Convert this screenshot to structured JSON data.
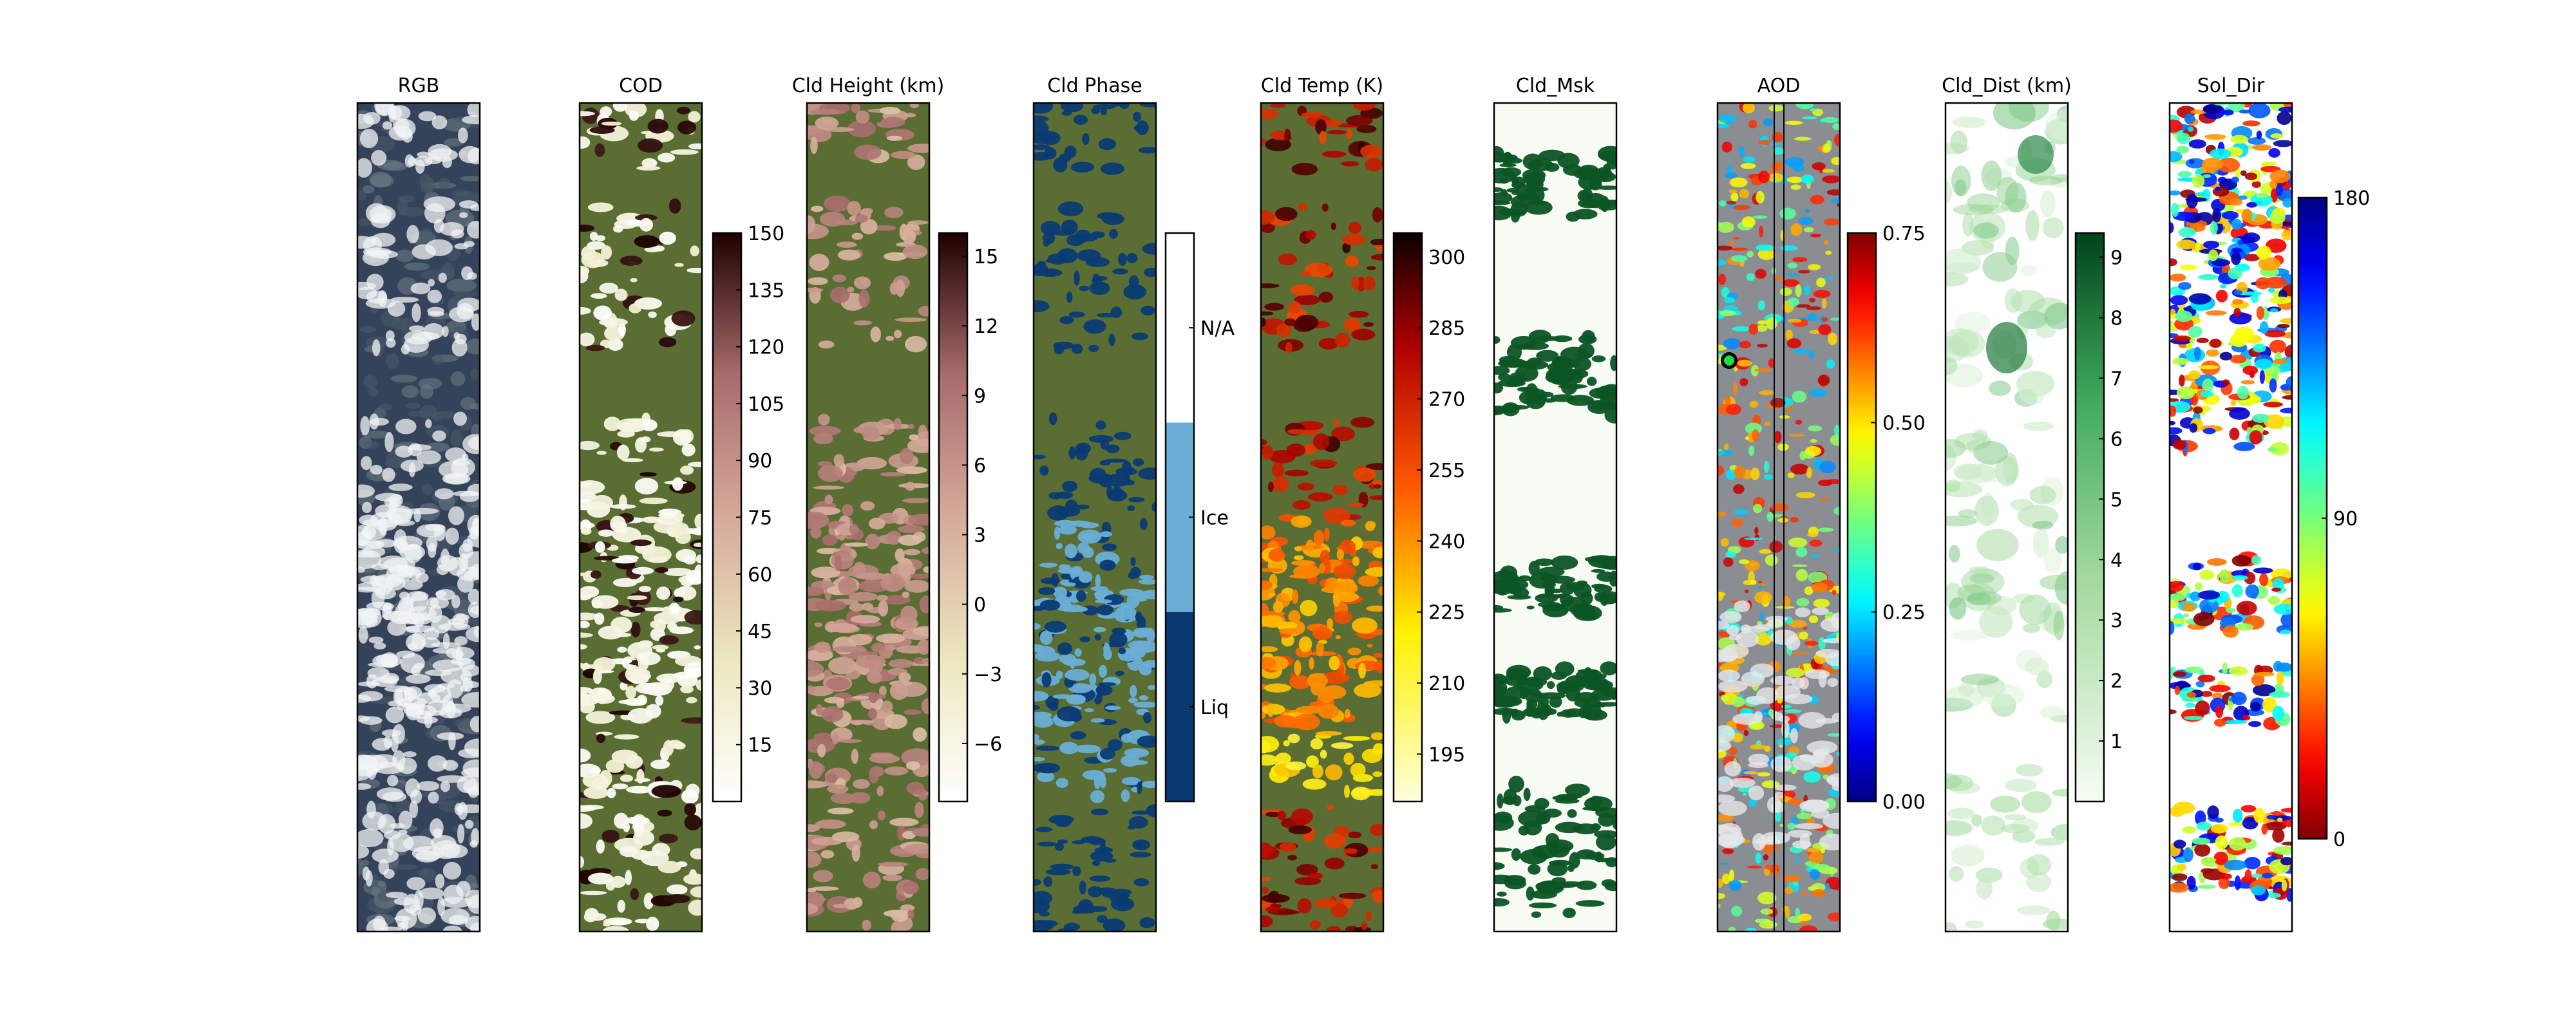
{
  "chart_data": [
    {
      "type": "heatmap",
      "title": "RGB",
      "cmap": "true-color",
      "colorbar": null
    },
    {
      "type": "heatmap",
      "title": "COD",
      "cmap": "pink_r",
      "colorbar": {
        "ticks": [
          15,
          30,
          45,
          60,
          75,
          90,
          105,
          120,
          135,
          150
        ],
        "tick_labels": [
          "15",
          "30",
          "45",
          "60",
          "75",
          "90",
          "105",
          "120",
          "135",
          "150"
        ],
        "range": [
          0,
          150
        ]
      }
    },
    {
      "type": "heatmap",
      "title": "Cld Height (km)",
      "cmap": "pink_r",
      "colorbar": {
        "ticks": [
          -6,
          -3,
          0,
          3,
          6,
          9,
          12,
          15
        ],
        "tick_labels": [
          "−6",
          "−3",
          "0",
          "3",
          "6",
          "9",
          "12",
          "15"
        ],
        "range": [
          -8.5,
          16
        ]
      }
    },
    {
      "type": "heatmap",
      "title": "Cld Phase",
      "cmap": "categorical",
      "colorbar": {
        "categories": [
          "Liq",
          "Ice",
          "N/A"
        ],
        "colors": [
          "#0b3a73",
          "#6aaed6",
          "#ffffff"
        ]
      }
    },
    {
      "type": "heatmap",
      "title": "Cld Temp (K)",
      "cmap": "hot_r",
      "colorbar": {
        "ticks": [
          195,
          210,
          225,
          240,
          255,
          270,
          285,
          300
        ],
        "tick_labels": [
          "195",
          "210",
          "225",
          "240",
          "255",
          "270",
          "285",
          "300"
        ],
        "range": [
          185,
          305
        ]
      }
    },
    {
      "type": "heatmap",
      "title": "Cld_Msk",
      "cmap": "Greens",
      "colorbar": null
    },
    {
      "type": "heatmap",
      "title": "AOD",
      "cmap": "jet",
      "colorbar": {
        "ticks": [
          0.0,
          0.25,
          0.5,
          0.75
        ],
        "tick_labels": [
          "0.00",
          "0.25",
          "0.50",
          "0.75"
        ],
        "range": [
          0.0,
          0.75
        ]
      }
    },
    {
      "type": "heatmap",
      "title": "Cld_Dist (km)",
      "cmap": "Greens",
      "colorbar": {
        "ticks": [
          1,
          2,
          3,
          4,
          5,
          6,
          7,
          8,
          9
        ],
        "tick_labels": [
          "1",
          "2",
          "3",
          "4",
          "5",
          "6",
          "7",
          "8",
          "9"
        ],
        "range": [
          0,
          9.4
        ]
      }
    },
    {
      "type": "heatmap",
      "title": "Sol_Dir",
      "cmap": "jet_r",
      "colorbar": {
        "ticks": [
          0,
          90,
          180
        ],
        "tick_labels": [
          "0",
          "90",
          "180"
        ],
        "range": [
          0,
          180
        ]
      }
    }
  ],
  "colors": {
    "no_data_olive": "#5a6e33",
    "cloud_white": "#f7fbf4",
    "mask_green": "#0c5424",
    "liq_blue": "#0b3a73",
    "ice_blue": "#6aaed6"
  }
}
